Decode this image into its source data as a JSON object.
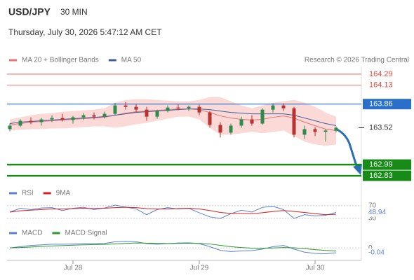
{
  "header": {
    "symbol": "USD/JPY",
    "interval": "30 MIN",
    "timestamp": "Thursday, July 30, 2026 5:47:12 AM CET"
  },
  "chart_data": [
    {
      "type": "candlestick",
      "source": "Research © 2026 Trading Central",
      "categories": [
        null,
        null,
        null,
        null,
        null,
        null,
        "Jul 28",
        null,
        null,
        null,
        null,
        null,
        null,
        null,
        null,
        null,
        null,
        null,
        "Jul 29",
        null,
        null,
        null,
        null,
        null,
        null,
        null,
        null,
        null,
        null,
        "Jul 30",
        null,
        null
      ],
      "candles": {
        "up_color": "#2f8a4c",
        "down_color": "#b83232",
        "open": [
          163.5,
          163.55,
          163.62,
          163.6,
          163.64,
          163.66,
          163.63,
          163.67,
          163.7,
          163.68,
          163.72,
          163.84,
          163.82,
          163.78,
          163.68,
          163.76,
          163.81,
          163.8,
          163.82,
          163.74,
          163.56,
          163.45,
          163.55,
          163.64,
          163.58,
          163.78,
          163.84,
          163.8,
          163.42,
          163.5,
          163.46,
          163.48
        ],
        "high": [
          163.58,
          163.64,
          163.67,
          163.66,
          163.7,
          163.72,
          163.69,
          163.73,
          163.74,
          163.75,
          163.88,
          163.89,
          163.86,
          163.82,
          163.78,
          163.84,
          163.86,
          163.84,
          163.85,
          163.76,
          163.6,
          163.58,
          163.68,
          163.7,
          163.8,
          163.87,
          163.87,
          163.82,
          163.55,
          163.53,
          163.5,
          163.54
        ],
        "low": [
          163.47,
          163.53,
          163.57,
          163.55,
          163.6,
          163.61,
          163.58,
          163.63,
          163.64,
          163.65,
          163.7,
          163.78,
          163.74,
          163.62,
          163.65,
          163.74,
          163.77,
          163.76,
          163.7,
          163.52,
          163.38,
          163.42,
          163.52,
          163.55,
          163.56,
          163.74,
          163.76,
          163.38,
          163.36,
          163.4,
          163.32,
          163.45
        ],
        "close": [
          163.55,
          163.62,
          163.6,
          163.64,
          163.66,
          163.63,
          163.67,
          163.7,
          163.68,
          163.72,
          163.84,
          163.82,
          163.78,
          163.68,
          163.76,
          163.81,
          163.8,
          163.82,
          163.74,
          163.56,
          163.45,
          163.55,
          163.64,
          163.58,
          163.78,
          163.84,
          163.8,
          163.42,
          163.5,
          163.46,
          163.48,
          163.52
        ]
      },
      "series": [
        {
          "name": "MA 20 + Bollinger Bands",
          "color": "#e57373",
          "band_color": "#fbd9d7",
          "values": [
            163.56,
            163.58,
            163.6,
            163.61,
            163.62,
            163.63,
            163.64,
            163.65,
            163.66,
            163.67,
            163.7,
            163.73,
            163.75,
            163.76,
            163.77,
            163.78,
            163.79,
            163.79,
            163.78,
            163.74,
            163.69,
            163.66,
            163.64,
            163.63,
            163.64,
            163.67,
            163.69,
            163.66,
            163.6,
            163.55,
            163.5,
            163.48
          ],
          "upper": [
            163.64,
            163.67,
            163.7,
            163.72,
            163.73,
            163.75,
            163.76,
            163.77,
            163.78,
            163.8,
            163.88,
            163.92,
            163.93,
            163.93,
            163.92,
            163.91,
            163.9,
            163.9,
            163.92,
            163.96,
            163.96,
            163.9,
            163.84,
            163.8,
            163.84,
            163.88,
            163.9,
            163.92,
            163.88,
            163.82,
            163.74,
            163.68
          ],
          "lower": [
            163.48,
            163.49,
            163.5,
            163.5,
            163.51,
            163.51,
            163.52,
            163.53,
            163.54,
            163.54,
            163.52,
            163.54,
            163.57,
            163.59,
            163.62,
            163.65,
            163.68,
            163.68,
            163.64,
            163.52,
            163.42,
            163.42,
            163.44,
            163.46,
            163.44,
            163.46,
            163.48,
            163.4,
            163.32,
            163.28,
            163.26,
            163.28
          ]
        },
        {
          "name": "MA 50",
          "color": "#3f5f9a",
          "values": [
            163.58,
            163.6,
            163.61,
            163.62,
            163.63,
            163.64,
            163.65,
            163.66,
            163.67,
            163.68,
            163.7,
            163.72,
            163.74,
            163.75,
            163.76,
            163.77,
            163.78,
            163.79,
            163.79,
            163.78,
            163.76,
            163.74,
            163.73,
            163.72,
            163.72,
            163.72,
            163.72,
            163.7,
            163.66,
            163.62,
            163.58,
            163.55
          ]
        }
      ],
      "levels": [
        {
          "value": 164.29,
          "kind": "resistance",
          "color": "#e8473f"
        },
        {
          "value": 164.13,
          "kind": "resistance",
          "color": "#e8473f"
        },
        {
          "value": 163.86,
          "kind": "pivot",
          "color": "#2a6fc9"
        },
        {
          "value": 162.99,
          "kind": "support",
          "color": "#178a17"
        },
        {
          "value": 162.83,
          "kind": "support",
          "color": "#178a17"
        }
      ],
      "ylim": [
        162.72,
        164.4
      ]
    },
    {
      "type": "line",
      "series": [
        {
          "name": "RSI",
          "color": "#5b7fd4",
          "values": [
            50,
            62,
            58,
            63,
            64,
            55,
            62,
            65,
            58,
            63,
            72,
            66,
            60,
            42,
            58,
            64,
            60,
            62,
            48,
            35,
            30,
            45,
            56,
            50,
            65,
            68,
            58,
            30,
            42,
            38,
            40,
            48.94
          ]
        },
        {
          "name": "9MA",
          "color": "#d62020",
          "values": [
            50,
            54,
            56,
            58,
            60,
            60,
            61,
            62,
            61,
            62,
            64,
            65,
            64,
            61,
            60,
            60,
            61,
            62,
            60,
            55,
            49,
            46,
            46,
            45,
            48,
            52,
            55,
            52,
            49,
            45,
            42,
            43
          ]
        }
      ],
      "ylim": [
        17,
        83
      ],
      "yticks": [
        70,
        30
      ]
    },
    {
      "type": "line",
      "series": [
        {
          "name": "MACD",
          "color": "#5b7fd4",
          "values": [
            0,
            0.01,
            0.02,
            0.025,
            0.03,
            0.03,
            0.032,
            0.035,
            0.035,
            0.037,
            0.05,
            0.055,
            0.05,
            0.035,
            0.03,
            0.035,
            0.04,
            0.042,
            0.035,
            0.01,
            -0.02,
            -0.03,
            -0.025,
            -0.022,
            -0.01,
            0.01,
            0.02,
            -0.01,
            -0.035,
            -0.045,
            -0.048,
            -0.04
          ]
        },
        {
          "name": "MACD Signal",
          "color": "#2a9a2a",
          "values": [
            0,
            0.003,
            0.007,
            0.012,
            0.016,
            0.019,
            0.022,
            0.025,
            0.027,
            0.029,
            0.033,
            0.037,
            0.04,
            0.039,
            0.037,
            0.036,
            0.037,
            0.038,
            0.037,
            0.032,
            0.021,
            0.01,
            0.003,
            -0.002,
            -0.004,
            -0.001,
            0.003,
            0.001,
            -0.006,
            -0.014,
            -0.021,
            -0.025
          ]
        }
      ],
      "ylim": [
        -0.12,
        0.11
      ],
      "yticks": [
        0
      ]
    }
  ]
}
